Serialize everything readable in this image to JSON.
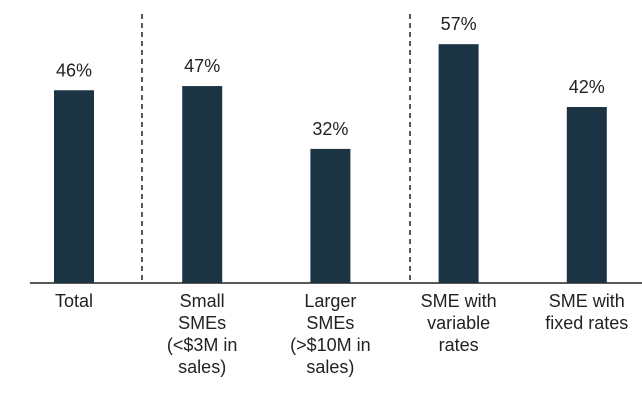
{
  "chart_data": {
    "type": "bar",
    "categories": [
      "Total",
      "Small\nSMEs\n(<$3M in\nsales)",
      "Larger\nSMEs\n(>$10M in\nsales)",
      "SME with\nvariable\nrates",
      "SME with\nfixed rates"
    ],
    "values": [
      46,
      47,
      32,
      57,
      42
    ],
    "value_labels": [
      "46%",
      "47%",
      "32%",
      "57%",
      "42%"
    ],
    "color": "#1c3344"
  }
}
